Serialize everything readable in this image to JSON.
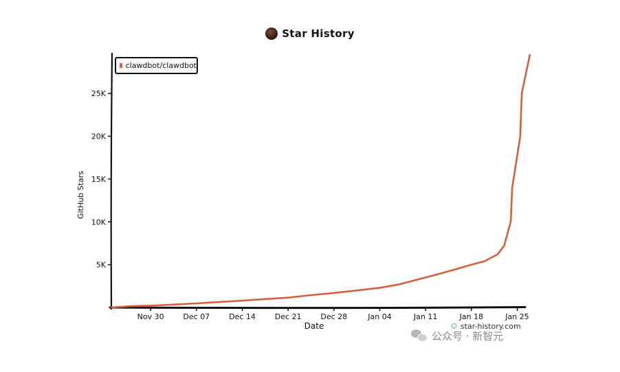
{
  "chart_data": {
    "type": "line",
    "title": "Star History",
    "xlabel": "Date",
    "ylabel": "GitHub Stars",
    "x_tick_labels": [
      "Nov 30",
      "Dec 07",
      "Dec 14",
      "Dec 21",
      "Dec 28",
      "Jan 04",
      "Jan 11",
      "Jan 18",
      "Jan 25"
    ],
    "y_tick_labels": [
      "5K",
      "10K",
      "15K",
      "20K",
      "25K"
    ],
    "y_ticks": [
      5000,
      10000,
      15000,
      20000,
      25000
    ],
    "ylim": [
      0,
      29500
    ],
    "grid": false,
    "legend_position": "top-left",
    "line_color": "#d4603a",
    "series": [
      {
        "name": "clawdbot/clawdbot",
        "x": [
          "2025-11-24",
          "2025-11-27",
          "2025-11-30",
          "2025-12-03",
          "2025-12-07",
          "2025-12-10",
          "2025-12-14",
          "2025-12-17",
          "2025-12-21",
          "2025-12-24",
          "2025-12-28",
          "2025-12-31",
          "2026-01-04",
          "2026-01-07",
          "2026-01-10",
          "2026-01-13",
          "2026-01-16",
          "2026-01-18",
          "2026-01-20",
          "2026-01-22",
          "2026-01-23",
          "2026-01-24",
          "2026-01-24",
          "2026-01-25",
          "2026-01-25",
          "2026-01-26"
        ],
        "y": [
          0,
          150,
          220,
          320,
          480,
          620,
          800,
          950,
          1150,
          1400,
          1700,
          1950,
          2300,
          2700,
          3300,
          3900,
          4550,
          5000,
          5400,
          6200,
          7200,
          10000,
          14000,
          20000,
          25000,
          29500
        ]
      }
    ]
  },
  "watermark": {
    "site": "star-history.com",
    "wechat": "公众号 · 新智元"
  }
}
